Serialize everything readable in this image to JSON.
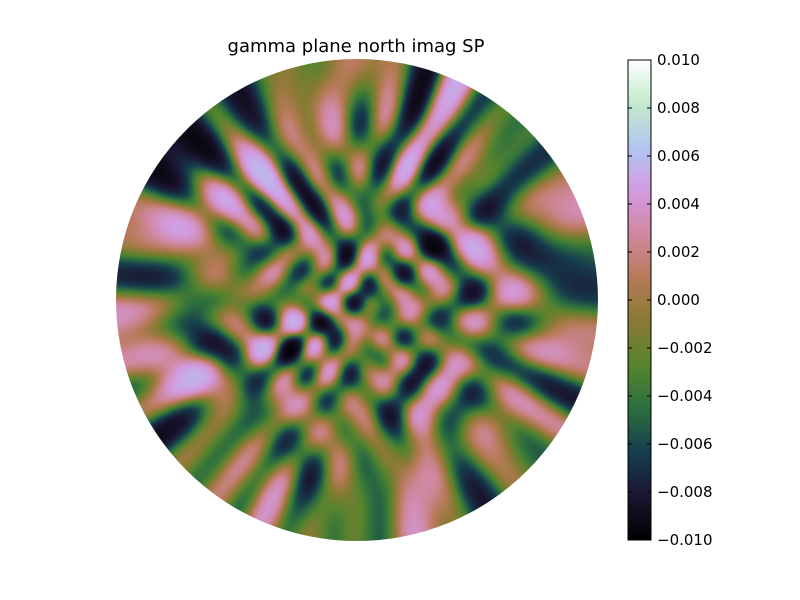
{
  "chart_data": {
    "type": "heatmap",
    "title": "gamma plane north imag SP",
    "projection": "polar disk (north)",
    "colormap": "cubehelix",
    "colormap_stops": [
      "#000000",
      "#1a1530",
      "#163d4e",
      "#2c6f3f",
      "#56842e",
      "#8a7a34",
      "#b77a58",
      "#d088a0",
      "#d39be0",
      "#b3c6f0",
      "#c2eacc",
      "#ffffff"
    ],
    "colorbar": {
      "vmin": -0.01,
      "vmax": 0.01,
      "ticks": [
        0.01,
        0.008,
        0.006,
        0.004,
        0.002,
        0.0,
        -0.002,
        -0.004,
        -0.006,
        -0.008,
        -0.01
      ],
      "tick_labels": [
        "0.010",
        "0.008",
        "0.006",
        "0.004",
        "0.002",
        "0.000",
        "−0.002",
        "−0.004",
        "−0.006",
        "−0.008",
        "−0.010"
      ]
    },
    "field_summary": {
      "value_range": [
        -0.01,
        0.006
      ],
      "pattern": "diagonal cross-hatched speckle texture, finer near center"
    }
  }
}
